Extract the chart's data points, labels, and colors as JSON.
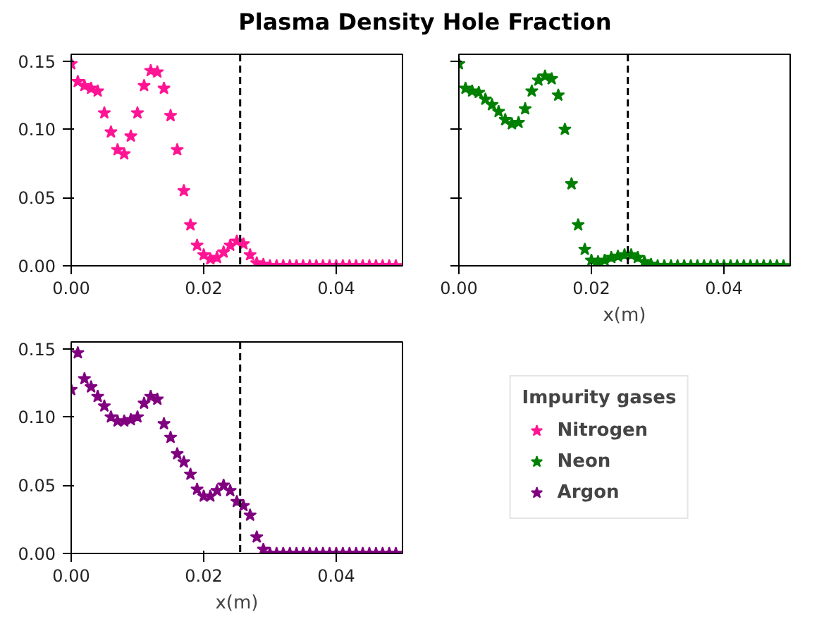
{
  "chart_data": [
    {
      "type": "scatter",
      "title": "Plasma Density Hole Fraction",
      "marker": "star",
      "grid": false,
      "legend": "right",
      "x": [
        0,
        0.001,
        0.002,
        0.003,
        0.004,
        0.005,
        0.006,
        0.007,
        0.008,
        0.009,
        0.01,
        0.011,
        0.012,
        0.013,
        0.014,
        0.015,
        0.016,
        0.017,
        0.018,
        0.019,
        0.02,
        0.021,
        0.022,
        0.023,
        0.024,
        0.025,
        0.026,
        0.027,
        0.028,
        0.029,
        0.03,
        0.031,
        0.032,
        0.033,
        0.034,
        0.035,
        0.036,
        0.037,
        0.038,
        0.039,
        0.04,
        0.041,
        0.042,
        0.043,
        0.044,
        0.045,
        0.046,
        0.047,
        0.048,
        0.049
      ],
      "series": [
        {
          "name": "Nitrogen",
          "color": "#ff1493",
          "values": [
            0.148,
            0.135,
            0.132,
            0.13,
            0.128,
            0.112,
            0.098,
            0.085,
            0.082,
            0.095,
            0.112,
            0.132,
            0.143,
            0.142,
            0.13,
            0.11,
            0.085,
            0.055,
            0.03,
            0.015,
            0.008,
            0.005,
            0.006,
            0.01,
            0.015,
            0.018,
            0.016,
            0.008,
            0.002,
            0.001,
            0,
            0,
            0,
            0,
            0,
            0,
            0,
            0,
            0,
            0,
            0,
            0,
            0,
            0,
            0,
            0,
            0,
            0,
            0,
            0
          ]
        }
      ],
      "xlim": [
        0,
        0.05
      ],
      "xticks": [
        {
          "value": 0,
          "label": "0.00"
        },
        {
          "value": 0.02,
          "label": "0.02"
        },
        {
          "value": 0.04,
          "label": "0.04"
        }
      ],
      "ylim": [
        0,
        0.155
      ],
      "yticks": [
        {
          "value": 0,
          "label": "0.00"
        },
        {
          "value": 0.05,
          "label": "0.05"
        },
        {
          "value": 0.1,
          "label": "0.10"
        },
        {
          "value": 0.15,
          "label": "0.15"
        }
      ],
      "ref_lines": [
        {
          "axis": "x",
          "value": 0.0255,
          "color": "#000000",
          "line_style": "dashed"
        }
      ]
    },
    {
      "type": "scatter",
      "xlabel": "x(m)",
      "marker": "star",
      "grid": false,
      "legend": "bottom",
      "tick_labels": "x",
      "x": [
        0,
        0.001,
        0.002,
        0.003,
        0.004,
        0.005,
        0.006,
        0.007,
        0.008,
        0.009,
        0.01,
        0.011,
        0.012,
        0.013,
        0.014,
        0.015,
        0.016,
        0.017,
        0.018,
        0.019,
        0.02,
        0.021,
        0.022,
        0.023,
        0.024,
        0.025,
        0.026,
        0.027,
        0.028,
        0.029,
        0.03,
        0.031,
        0.032,
        0.033,
        0.034,
        0.035,
        0.036,
        0.037,
        0.038,
        0.039,
        0.04,
        0.041,
        0.042,
        0.043,
        0.044,
        0.045,
        0.046,
        0.047,
        0.048,
        0.049
      ],
      "series": [
        {
          "name": "Neon",
          "color": "#008000",
          "values": [
            0.148,
            0.13,
            0.128,
            0.127,
            0.122,
            0.118,
            0.113,
            0.107,
            0.104,
            0.105,
            0.115,
            0.128,
            0.136,
            0.139,
            0.137,
            0.125,
            0.1,
            0.06,
            0.03,
            0.012,
            0.004,
            0.003,
            0.004,
            0.006,
            0.007,
            0.008,
            0.008,
            0.006,
            0.003,
            0.001,
            0,
            0,
            0,
            0,
            0,
            0,
            0,
            0,
            0,
            0,
            0,
            0,
            0,
            0,
            0,
            0,
            0,
            0,
            0,
            0
          ]
        }
      ],
      "xlim": [
        0,
        0.05
      ],
      "xticks": [
        {
          "value": 0,
          "label": "0.00"
        },
        {
          "value": 0.02,
          "label": "0.02"
        },
        {
          "value": 0.04,
          "label": "0.04"
        }
      ],
      "ylim": [
        0,
        0.155
      ],
      "yticks": [
        {
          "value": 0,
          "label": null
        },
        {
          "value": 0.05,
          "label": null
        },
        {
          "value": 0.1,
          "label": null
        },
        {
          "value": 0.15,
          "label": null
        }
      ],
      "ref_lines": [
        {
          "axis": "x",
          "value": 0.0255,
          "color": "#000000",
          "line_style": "dashed"
        }
      ]
    },
    {
      "type": "scatter",
      "xlabel": "x(m)",
      "marker": "star",
      "grid": false,
      "legend": "right",
      "legend_title": "Impurity gases",
      "x": [
        0,
        0.001,
        0.002,
        0.003,
        0.004,
        0.005,
        0.006,
        0.007,
        0.008,
        0.009,
        0.01,
        0.011,
        0.012,
        0.013,
        0.014,
        0.015,
        0.016,
        0.017,
        0.018,
        0.019,
        0.02,
        0.021,
        0.022,
        0.023,
        0.024,
        0.025,
        0.026,
        0.027,
        0.028,
        0.029,
        0.03,
        0.031,
        0.032,
        0.033,
        0.034,
        0.035,
        0.036,
        0.037,
        0.038,
        0.039,
        0.04,
        0.041,
        0.042,
        0.043,
        0.044,
        0.045,
        0.046,
        0.047,
        0.048,
        0.049
      ],
      "series": [
        {
          "name": "Argon",
          "color": "#800080",
          "values": [
            0.12,
            0.147,
            0.128,
            0.122,
            0.115,
            0.108,
            0.1,
            0.097,
            0.097,
            0.098,
            0.1,
            0.11,
            0.115,
            0.113,
            0.095,
            0.085,
            0.073,
            0.067,
            0.058,
            0.047,
            0.042,
            0.042,
            0.046,
            0.05,
            0.046,
            0.038,
            0.035,
            0.028,
            0.012,
            0.003,
            0,
            0,
            0,
            0,
            0,
            0,
            0,
            0,
            0,
            0,
            0,
            0,
            0,
            0,
            0,
            0,
            0,
            0,
            0,
            0
          ]
        }
      ],
      "xlim": [
        0,
        0.05
      ],
      "xticks": [
        {
          "value": 0,
          "label": "0.00"
        },
        {
          "value": 0.02,
          "label": "0.02"
        },
        {
          "value": 0.04,
          "label": "0.04"
        }
      ],
      "ylim": [
        0,
        0.155
      ],
      "yticks": [
        {
          "value": 0,
          "label": "0.00"
        },
        {
          "value": 0.05,
          "label": "0.05"
        },
        {
          "value": 0.1,
          "label": "0.10"
        },
        {
          "value": 0.15,
          "label": "0.15"
        }
      ],
      "ref_lines": [
        {
          "axis": "x",
          "value": 0.0255,
          "color": "#000000",
          "line_style": "dashed"
        }
      ]
    }
  ]
}
